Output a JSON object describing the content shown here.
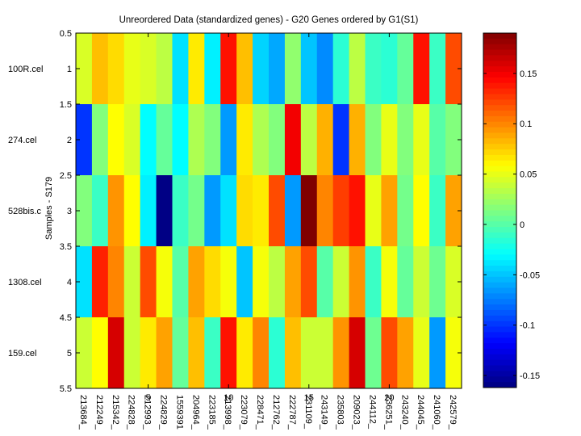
{
  "chart_data": {
    "type": "heatmap",
    "title": "Unreordered Data (standardized genes) - G20 Genes ordered by G1(S1)",
    "xlabel": "",
    "ylabel": "Samples - S179",
    "x_tick_values": [
      "5",
      "10",
      "15",
      "20"
    ],
    "x_tick_positions": [
      5,
      10,
      15,
      20
    ],
    "y_tick_labels": [
      "0.5",
      "1",
      "1.5",
      "2",
      "2.5",
      "3",
      "3.5",
      "4",
      "4.5",
      "5",
      "5.5"
    ],
    "y_tick_values": [
      0.5,
      1,
      1.5,
      2,
      2.5,
      3,
      3.5,
      4,
      4.5,
      5,
      5.5
    ],
    "xlim": [
      0.5,
      24.5
    ],
    "ylim": [
      0.5,
      5.5
    ],
    "rows": [
      "100R.cel",
      "274.cel",
      "528bis.c",
      "1308.cel",
      "159.cel"
    ],
    "columns": [
      "213684_",
      "212249_",
      "215342_",
      "224828_",
      "212993_",
      "224829_",
      "1559391",
      "204964_",
      "223185_",
      "213998_",
      "223079_",
      "228471_",
      "212762_",
      "222787_",
      "231109_",
      "243149_",
      "235803_",
      "209023_",
      "244112_",
      "236251_",
      "243240_",
      "244045_",
      "241060_",
      "242579_"
    ],
    "values": [
      [
        0.045,
        0.08,
        0.07,
        0.05,
        0.045,
        0.035,
        -0.04,
        0.065,
        -0.035,
        0.14,
        0.08,
        -0.045,
        -0.06,
        0.02,
        -0.05,
        -0.07,
        -0.015,
        0.035,
        -0.01,
        -0.015,
        0.005,
        0.14,
        -0.01,
        0.12
      ],
      [
        -0.1,
        0.015,
        0.058,
        0.045,
        -0.03,
        0.005,
        -0.03,
        0.03,
        0.015,
        -0.065,
        0.065,
        0.03,
        0.015,
        0.15,
        0.035,
        0.085,
        -0.1,
        0.085,
        0.015,
        0.05,
        0.015,
        0.05,
        0.0,
        0.015
      ],
      [
        0.015,
        -0.01,
        0.095,
        0.058,
        -0.035,
        -0.16,
        -0.01,
        0.01,
        -0.065,
        -0.04,
        0.07,
        0.065,
        0.12,
        -0.065,
        0.19,
        0.1,
        0.125,
        0.14,
        0.05,
        0.09,
        0.01,
        0.058,
        -0.01,
        0.09
      ],
      [
        -0.04,
        0.135,
        0.1,
        0.04,
        0.12,
        0.055,
        0.0,
        0.09,
        0.07,
        0.055,
        -0.05,
        0.055,
        0.035,
        0.09,
        0.12,
        0.0,
        0.04,
        0.095,
        -0.01,
        0.055,
        0.005,
        0.04,
        0.008,
        0.045
      ],
      [
        0.04,
        0.058,
        0.16,
        0.04,
        0.065,
        0.09,
        0.005,
        0.08,
        -0.01,
        0.14,
        0.065,
        0.1,
        -0.015,
        0.08,
        0.04,
        0.04,
        0.095,
        0.16,
        0.008,
        0.12,
        0.09,
        0.05,
        -0.065,
        0.055
      ]
    ],
    "colormap": "jet",
    "colorbar": {
      "clim": [
        -0.162,
        0.19
      ],
      "tick_labels": [
        "0.15",
        "0.1",
        "0.05",
        "0",
        "-0.05",
        "-0.1",
        "-0.15"
      ],
      "tick_values": [
        0.15,
        0.1,
        0.05,
        0,
        -0.05,
        -0.1,
        -0.15
      ],
      "placement": "right"
    },
    "grid": false
  }
}
